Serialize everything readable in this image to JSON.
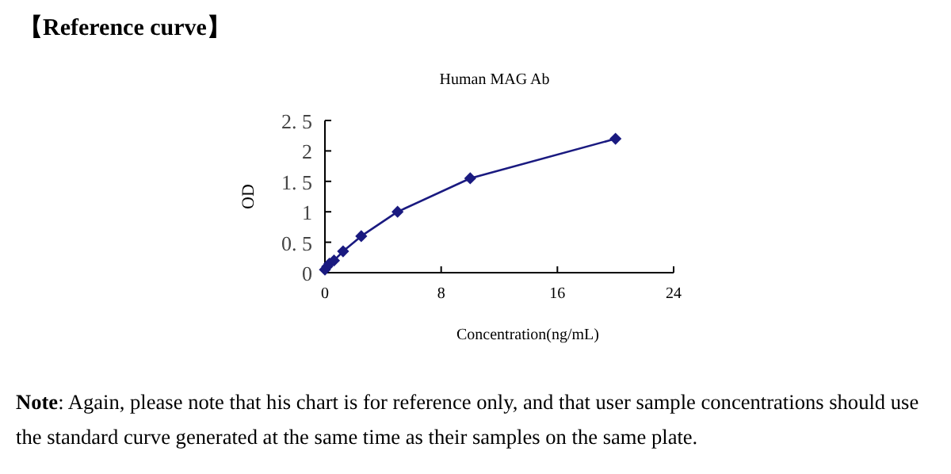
{
  "chart_data": {
    "type": "line",
    "title": "【Reference curve】",
    "subtitle": "Human MAG Ab",
    "xlabel": "Concentration(ng/mL)",
    "ylabel": "OD",
    "x": [
      0,
      0.156,
      0.312,
      0.625,
      1.25,
      2.5,
      5,
      10,
      20
    ],
    "series": [
      {
        "color": "#1a1a80",
        "values": [
          0.05,
          0.1,
          0.15,
          0.2,
          0.35,
          0.6,
          1.0,
          1.55,
          2.2
        ]
      }
    ],
    "xlim": [
      0,
      24
    ],
    "xticks": [
      0,
      8,
      16,
      24
    ],
    "ylim": [
      0,
      2.5
    ],
    "yticks": [
      0,
      {
        "value": 0.5,
        "label": "0. 5"
      },
      1,
      {
        "value": 1.5,
        "label": "1. 5"
      },
      2,
      {
        "value": 2.5,
        "label": "2. 5"
      }
    ],
    "marker": "diamond",
    "line_style": "solid",
    "annotations": [
      "**Note**: Again, please note that his chart is for reference only, and that user sample concentrations should use the standard curve generated at the same time as their samples on the same plate."
    ]
  }
}
